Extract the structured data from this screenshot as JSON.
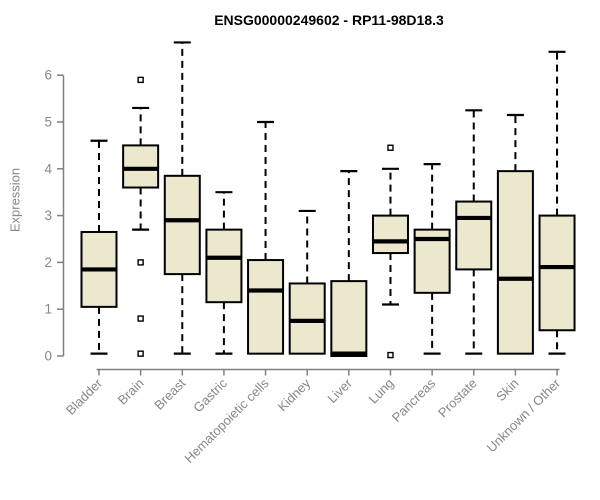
{
  "title": "ENSG00000249602 - RP11-98D18.3",
  "chart_data": {
    "type": "boxplot",
    "title": "ENSG00000249602 - RP11-98D18.3",
    "xlabel": "",
    "ylabel": "Expression",
    "ylim": [
      0,
      6
    ],
    "yticks": [
      0,
      1,
      2,
      3,
      4,
      5,
      6
    ],
    "grid": false,
    "categories": [
      "Bladder",
      "Brain",
      "Breast",
      "Gastric",
      "Hematopoietic cells",
      "Kidney",
      "Liver",
      "Lung",
      "Pancreas",
      "Prostate",
      "Skin",
      "Unknown / Other"
    ],
    "series": [
      {
        "name": "Bladder",
        "whisker_low": 0.05,
        "q1": 1.05,
        "median": 1.85,
        "q3": 2.65,
        "whisker_high": 4.6,
        "outliers": []
      },
      {
        "name": "Brain",
        "whisker_low": 2.7,
        "q1": 3.6,
        "median": 4.0,
        "q3": 4.5,
        "whisker_high": 5.3,
        "outliers": [
          5.9,
          2.0,
          0.8,
          0.05
        ]
      },
      {
        "name": "Breast",
        "whisker_low": 0.05,
        "q1": 1.75,
        "median": 2.9,
        "q3": 3.85,
        "whisker_high": 6.7,
        "outliers": []
      },
      {
        "name": "Gastric",
        "whisker_low": 0.05,
        "q1": 1.15,
        "median": 2.1,
        "q3": 2.7,
        "whisker_high": 3.5,
        "outliers": []
      },
      {
        "name": "Hematopoietic cells",
        "whisker_low": 0.05,
        "q1": 0.05,
        "median": 1.4,
        "q3": 2.05,
        "whisker_high": 5.0,
        "outliers": []
      },
      {
        "name": "Kidney",
        "whisker_low": 0.05,
        "q1": 0.05,
        "median": 0.75,
        "q3": 1.55,
        "whisker_high": 3.1,
        "outliers": []
      },
      {
        "name": "Liver",
        "whisker_low": 0.0,
        "q1": 0.0,
        "median": 0.05,
        "q3": 1.6,
        "whisker_high": 3.95,
        "outliers": []
      },
      {
        "name": "Lung",
        "whisker_low": 1.1,
        "q1": 2.2,
        "median": 2.45,
        "q3": 3.0,
        "whisker_high": 4.0,
        "outliers": [
          4.45,
          0.02
        ]
      },
      {
        "name": "Pancreas",
        "whisker_low": 0.05,
        "q1": 1.35,
        "median": 2.5,
        "q3": 2.7,
        "whisker_high": 4.1,
        "outliers": []
      },
      {
        "name": "Prostate",
        "whisker_low": 0.05,
        "q1": 1.85,
        "median": 2.95,
        "q3": 3.3,
        "whisker_high": 5.25,
        "outliers": []
      },
      {
        "name": "Skin",
        "whisker_low": 0.05,
        "q1": 0.05,
        "median": 1.65,
        "q3": 3.95,
        "whisker_high": 5.15,
        "outliers": []
      },
      {
        "name": "Unknown / Other",
        "whisker_low": 0.05,
        "q1": 0.55,
        "median": 1.9,
        "q3": 3.0,
        "whisker_high": 6.5,
        "outliers": []
      }
    ],
    "colors": {
      "box_fill": "#ece8cd",
      "box_stroke": "#000000",
      "median": "#000000",
      "whisker": "#000000",
      "outlier_fill": "#ffffff",
      "axis": "#808080",
      "axis_text": "#878787",
      "title_text": "#000000"
    },
    "legend": null
  }
}
